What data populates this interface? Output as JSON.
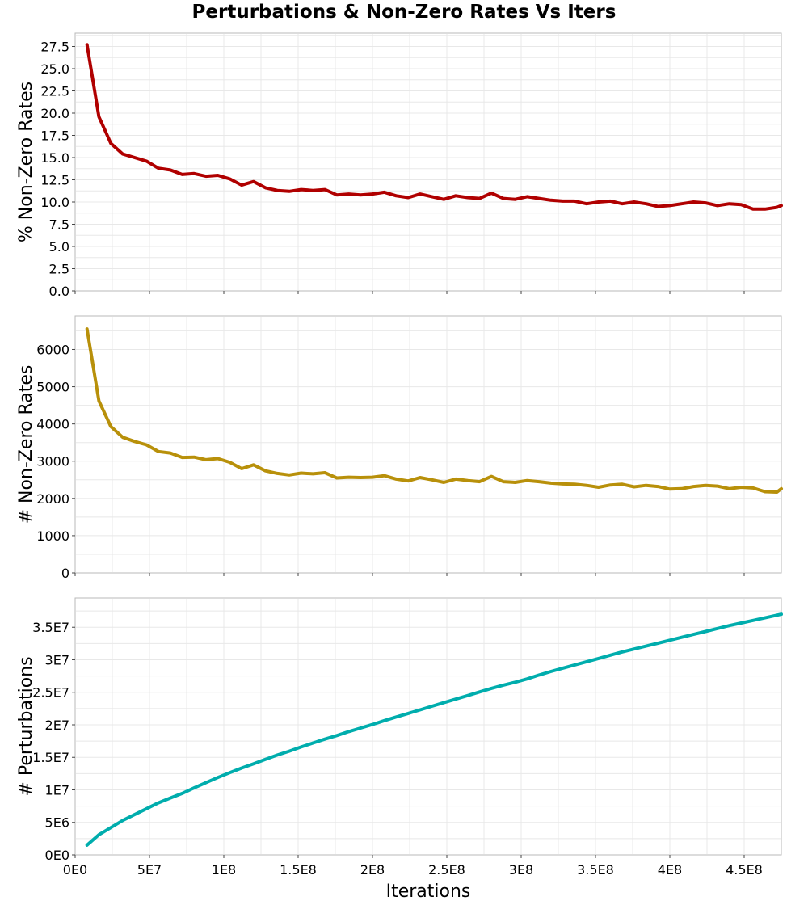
{
  "figure": {
    "title": "Perturbations & Non-Zero Rates Vs Iters"
  },
  "chart_data": [
    {
      "type": "line",
      "ylabel": "% Non-Zero Rates",
      "ylim": [
        0,
        29
      ],
      "yticks": [
        0,
        2.5,
        5,
        7.5,
        10,
        12.5,
        15,
        17.5,
        20,
        22.5,
        25,
        27.5
      ],
      "ytick_labels": [
        "0.0",
        "2.5",
        "5.0",
        "7.5",
        "10.0",
        "12.5",
        "15.0",
        "17.5",
        "20.0",
        "22.5",
        "25.0",
        "27.5"
      ],
      "xlim": [
        0,
        475000000
      ],
      "grid": true,
      "color": "#b00000",
      "x": [
        8000000.0,
        16000000.0,
        24000000.0,
        32000000.0,
        40000000.0,
        48000000.0,
        56000000.0,
        64000000.0,
        72000000.0,
        80000000.0,
        88000000.0,
        96000000.0,
        104000000.0,
        112000000.0,
        120000000.0,
        128000000.0,
        136000000.0,
        144000000.0,
        152000000.0,
        160000000.0,
        168000000.0,
        176000000.0,
        184000000.0,
        192000000.0,
        200000000.0,
        208000000.0,
        216000000.0,
        224000000.0,
        232000000.0,
        240000000.0,
        248000000.0,
        256000000.0,
        264000000.0,
        272000000.0,
        280000000.0,
        288000000.0,
        296000000.0,
        304000000.0,
        312000000.0,
        320000000.0,
        328000000.0,
        336000000.0,
        344000000.0,
        352000000.0,
        360000000.0,
        368000000.0,
        376000000.0,
        384000000.0,
        392000000.0,
        400000000.0,
        408000000.0,
        416000000.0,
        424000000.0,
        432000000.0,
        440000000.0,
        448000000.0,
        456000000.0,
        464000000.0,
        472000000.0,
        475000000.0
      ],
      "y": [
        27.7,
        19.6,
        16.6,
        15.4,
        15.0,
        14.6,
        13.8,
        13.6,
        13.1,
        13.2,
        12.9,
        13.0,
        12.6,
        11.9,
        12.3,
        11.6,
        11.3,
        11.2,
        11.4,
        11.3,
        11.4,
        10.8,
        10.9,
        10.8,
        10.9,
        11.1,
        10.7,
        10.5,
        10.9,
        10.6,
        10.3,
        10.7,
        10.5,
        10.4,
        11.0,
        10.4,
        10.3,
        10.6,
        10.4,
        10.2,
        10.1,
        10.1,
        9.8,
        10.0,
        10.1,
        9.8,
        10.0,
        9.8,
        9.5,
        9.6,
        9.8,
        10.0,
        9.9,
        9.6,
        9.8,
        9.7,
        9.2,
        9.2,
        9.4,
        9.6
      ]
    },
    {
      "type": "line",
      "ylabel": "# Non-Zero Rates",
      "ylim": [
        0,
        6900
      ],
      "yticks": [
        0,
        1000,
        2000,
        3000,
        4000,
        5000,
        6000
      ],
      "ytick_labels": [
        "0",
        "1000",
        "2000",
        "3000",
        "4000",
        "5000",
        "6000"
      ],
      "xlim": [
        0,
        475000000
      ],
      "grid": true,
      "color": "#b8900a",
      "x": [
        8000000.0,
        16000000.0,
        24000000.0,
        32000000.0,
        40000000.0,
        48000000.0,
        56000000.0,
        64000000.0,
        72000000.0,
        80000000.0,
        88000000.0,
        96000000.0,
        104000000.0,
        112000000.0,
        120000000.0,
        128000000.0,
        136000000.0,
        144000000.0,
        152000000.0,
        160000000.0,
        168000000.0,
        176000000.0,
        184000000.0,
        192000000.0,
        200000000.0,
        208000000.0,
        216000000.0,
        224000000.0,
        232000000.0,
        240000000.0,
        248000000.0,
        256000000.0,
        264000000.0,
        272000000.0,
        280000000.0,
        288000000.0,
        296000000.0,
        304000000.0,
        312000000.0,
        320000000.0,
        328000000.0,
        336000000.0,
        344000000.0,
        352000000.0,
        360000000.0,
        368000000.0,
        376000000.0,
        384000000.0,
        392000000.0,
        400000000.0,
        408000000.0,
        416000000.0,
        424000000.0,
        432000000.0,
        440000000.0,
        448000000.0,
        456000000.0,
        464000000.0,
        472000000.0,
        475000000.0
      ],
      "y": [
        6550,
        4620,
        3930,
        3640,
        3530,
        3440,
        3260,
        3220,
        3100,
        3110,
        3040,
        3070,
        2970,
        2800,
        2900,
        2740,
        2670,
        2630,
        2680,
        2660,
        2690,
        2550,
        2570,
        2560,
        2570,
        2610,
        2520,
        2470,
        2560,
        2500,
        2430,
        2520,
        2480,
        2450,
        2590,
        2450,
        2430,
        2480,
        2450,
        2410,
        2390,
        2380,
        2350,
        2300,
        2360,
        2380,
        2310,
        2350,
        2320,
        2250,
        2260,
        2320,
        2350,
        2330,
        2260,
        2300,
        2280,
        2180,
        2170,
        2260
      ]
    },
    {
      "type": "line",
      "ylabel": "# Perturbations",
      "xlabel": "Iterations",
      "ylim": [
        0,
        39500000
      ],
      "yticks": [
        0,
        5000000.0,
        10000000.0,
        15000000.0,
        20000000.0,
        25000000.0,
        30000000.0,
        35000000.0
      ],
      "ytick_labels": [
        "0E0",
        "5E6",
        "1E7",
        "1.5E7",
        "2E7",
        "2.5E7",
        "3E7",
        "3.5E7"
      ],
      "xlim": [
        0,
        475000000
      ],
      "xticks": [
        0,
        50000000.0,
        100000000.0,
        150000000.0,
        200000000.0,
        250000000.0,
        300000000.0,
        350000000.0,
        400000000.0,
        450000000.0
      ],
      "xtick_labels": [
        "0E0",
        "5E7",
        "1E8",
        "1.5E8",
        "2E8",
        "2.5E8",
        "3E8",
        "3.5E8",
        "4E8",
        "4.5E8"
      ],
      "grid": true,
      "color": "#00adad",
      "x": [
        8000000.0,
        16000000.0,
        24000000.0,
        32000000.0,
        40000000.0,
        48000000.0,
        56000000.0,
        64000000.0,
        72000000.0,
        80000000.0,
        88000000.0,
        96000000.0,
        104000000.0,
        112000000.0,
        120000000.0,
        128000000.0,
        136000000.0,
        144000000.0,
        152000000.0,
        160000000.0,
        168000000.0,
        176000000.0,
        184000000.0,
        192000000.0,
        200000000.0,
        208000000.0,
        216000000.0,
        224000000.0,
        232000000.0,
        240000000.0,
        248000000.0,
        256000000.0,
        264000000.0,
        272000000.0,
        280000000.0,
        288000000.0,
        296000000.0,
        304000000.0,
        312000000.0,
        320000000.0,
        328000000.0,
        336000000.0,
        344000000.0,
        352000000.0,
        360000000.0,
        368000000.0,
        376000000.0,
        384000000.0,
        392000000.0,
        400000000.0,
        408000000.0,
        416000000.0,
        424000000.0,
        432000000.0,
        440000000.0,
        448000000.0,
        456000000.0,
        464000000.0,
        472000000.0,
        475000000.0
      ],
      "y": [
        1500000,
        3100000,
        4200000,
        5300000,
        6200000,
        7100000,
        8000000,
        8750000,
        9450000,
        10300000,
        11100000,
        11900000,
        12650000,
        13350000,
        14000000,
        14700000,
        15350000,
        15950000,
        16600000,
        17200000,
        17800000,
        18350000,
        18950000,
        19500000,
        20050000,
        20650000,
        21200000,
        21750000,
        22300000,
        22850000,
        23400000,
        23950000,
        24500000,
        25050000,
        25600000,
        26100000,
        26550000,
        27050000,
        27650000,
        28200000,
        28700000,
        29200000,
        29700000,
        30200000,
        30700000,
        31200000,
        31650000,
        32100000,
        32550000,
        33000000,
        33450000,
        33900000,
        34350000,
        34800000,
        35250000,
        35650000,
        36050000,
        36450000,
        36850000,
        37000000
      ]
    }
  ]
}
